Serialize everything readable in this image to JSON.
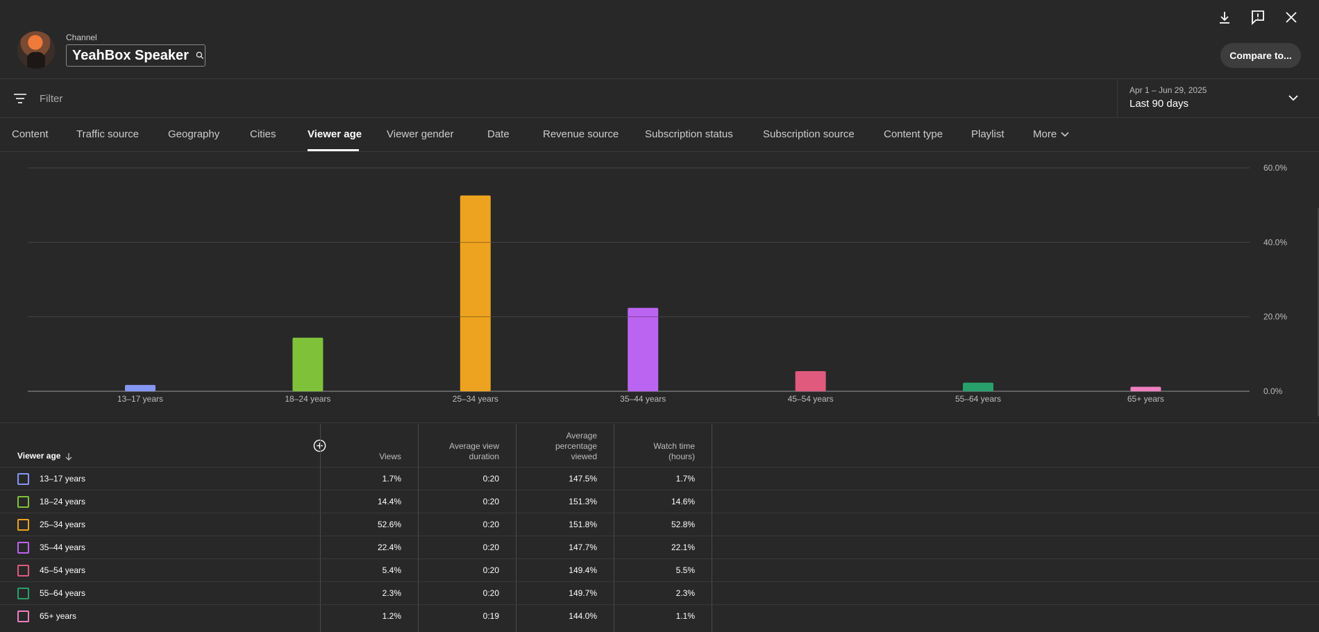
{
  "header": {
    "channel_caption": "Channel",
    "channel_name": "YeahBox Speaker",
    "compare_label": "Compare to..."
  },
  "filter": {
    "placeholder": "Filter",
    "date_range": "Apr 1 – Jun 29, 2025",
    "period": "Last 90 days"
  },
  "tabs": [
    {
      "label": "Content"
    },
    {
      "label": "Traffic source"
    },
    {
      "label": "Geography"
    },
    {
      "label": "Cities"
    },
    {
      "label": "Viewer age",
      "active": true
    },
    {
      "label": "Viewer gender"
    },
    {
      "label": "Date"
    },
    {
      "label": "Revenue source"
    },
    {
      "label": "Subscription status"
    },
    {
      "label": "Subscription source"
    },
    {
      "label": "Content type"
    },
    {
      "label": "Playlist"
    },
    {
      "label": "More"
    }
  ],
  "chart_data": {
    "type": "bar",
    "categories": [
      "13–17 years",
      "18–24 years",
      "25–34 years",
      "35–44 years",
      "45–54 years",
      "55–64 years",
      "65+ years"
    ],
    "values": [
      1.7,
      14.4,
      52.6,
      22.4,
      5.4,
      2.3,
      1.2
    ],
    "colors": [
      "#8597f4",
      "#7fc23a",
      "#eda31f",
      "#bc64f2",
      "#e05a7e",
      "#28a06b",
      "#ee7fbf"
    ],
    "ylim": [
      0,
      60
    ],
    "yticks": [
      "0.0%",
      "20.0%",
      "40.0%",
      "60.0%"
    ],
    "ytick_values": [
      0,
      20,
      40,
      60
    ],
    "grid": true
  },
  "table": {
    "first_header": "Viewer age",
    "headers": [
      "Views",
      "Average view duration",
      "Average percentage viewed",
      "Watch time (hours)"
    ],
    "rows": [
      {
        "label": "13–17 years",
        "color": "#8597f4",
        "views": "1.7%",
        "avd": "0:20",
        "apv": "147.5%",
        "watch": "1.7%"
      },
      {
        "label": "18–24 years",
        "color": "#7fc23a",
        "views": "14.4%",
        "avd": "0:20",
        "apv": "151.3%",
        "watch": "14.6%"
      },
      {
        "label": "25–34 years",
        "color": "#eda31f",
        "views": "52.6%",
        "avd": "0:20",
        "apv": "151.8%",
        "watch": "52.8%"
      },
      {
        "label": "35–44 years",
        "color": "#bc64f2",
        "views": "22.4%",
        "avd": "0:20",
        "apv": "147.7%",
        "watch": "22.1%"
      },
      {
        "label": "45–54 years",
        "color": "#e05a7e",
        "views": "5.4%",
        "avd": "0:20",
        "apv": "149.4%",
        "watch": "5.5%"
      },
      {
        "label": "55–64 years",
        "color": "#28a06b",
        "views": "2.3%",
        "avd": "0:20",
        "apv": "149.7%",
        "watch": "2.3%"
      },
      {
        "label": "65+ years",
        "color": "#ee7fbf",
        "views": "1.2%",
        "avd": "0:19",
        "apv": "144.0%",
        "watch": "1.1%"
      }
    ]
  }
}
